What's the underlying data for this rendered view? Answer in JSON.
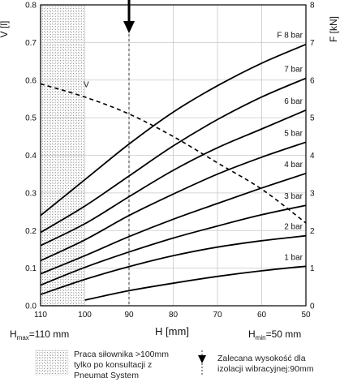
{
  "chart_data": {
    "type": "line",
    "x_axis": {
      "label": "H [mm]",
      "reversed": true,
      "range": [
        110,
        50
      ],
      "ticks": [
        "110",
        "100",
        "90",
        "80",
        "70",
        "60",
        "50"
      ],
      "grid": true
    },
    "y_left": {
      "label": "V [l]",
      "range": [
        0,
        0.8
      ],
      "ticks": [
        "0.0",
        "0.1",
        "0.2",
        "0.3",
        "0.4",
        "0.5",
        "0.6",
        "0.7",
        "0.8"
      ]
    },
    "y_right": {
      "label": "F [kN]",
      "range": [
        0,
        8
      ],
      "ticks": [
        "0",
        "1",
        "2",
        "3",
        "4",
        "5",
        "6",
        "7",
        "8"
      ]
    },
    "hmax_label": {
      "sym": "H",
      "sub": "max",
      "rest": "=110 mm"
    },
    "hmin_label": {
      "sym": "H",
      "sub": "min",
      "rest": "=50 mm"
    },
    "hatched_region": {
      "from": 110,
      "to": 100
    },
    "recommended_height": 90,
    "grid": true,
    "series": [
      {
        "name": "1 bar",
        "axis": "right",
        "x": [
          100,
          90,
          80,
          70,
          60,
          50
        ],
        "values": [
          0.15,
          0.4,
          0.6,
          0.78,
          0.93,
          1.05
        ]
      },
      {
        "name": "2 bar",
        "axis": "right",
        "x": [
          110,
          100,
          90,
          80,
          70,
          60,
          50
        ],
        "values": [
          0.3,
          0.7,
          1.04,
          1.33,
          1.56,
          1.73,
          1.86
        ]
      },
      {
        "name": "3 bar",
        "axis": "right",
        "x": [
          110,
          100,
          90,
          80,
          70,
          60,
          50
        ],
        "values": [
          0.55,
          1.02,
          1.43,
          1.8,
          2.12,
          2.42,
          2.67
        ]
      },
      {
        "name": "4 bar",
        "axis": "right",
        "x": [
          110,
          100,
          90,
          80,
          70,
          60,
          50
        ],
        "values": [
          0.85,
          1.33,
          1.84,
          2.3,
          2.72,
          3.13,
          3.52
        ]
      },
      {
        "name": "5 bar",
        "axis": "right",
        "x": [
          110,
          100,
          90,
          80,
          70,
          60,
          50
        ],
        "values": [
          1.2,
          1.75,
          2.4,
          2.97,
          3.5,
          3.95,
          4.35
        ]
      },
      {
        "name": "6 bar",
        "axis": "right",
        "x": [
          110,
          100,
          90,
          80,
          70,
          60,
          50
        ],
        "values": [
          1.6,
          2.18,
          2.9,
          3.6,
          4.2,
          4.7,
          5.2
        ]
      },
      {
        "name": "7 bar",
        "axis": "right",
        "x": [
          110,
          100,
          90,
          80,
          70,
          60,
          50
        ],
        "values": [
          1.95,
          2.65,
          3.45,
          4.25,
          4.95,
          5.55,
          6.05
        ]
      },
      {
        "name": "F 8 bar",
        "axis": "right",
        "x": [
          110,
          100,
          90,
          80,
          70,
          60,
          50
        ],
        "values": [
          2.4,
          3.35,
          4.3,
          5.15,
          5.85,
          6.45,
          6.95
        ]
      },
      {
        "name": "V",
        "axis": "left",
        "dashed": true,
        "x": [
          110,
          100,
          90,
          80,
          70,
          60,
          50
        ],
        "values": [
          0.59,
          0.555,
          0.51,
          0.45,
          0.38,
          0.31,
          0.22
        ]
      }
    ]
  },
  "legend": {
    "hatched_text_1": "Praca siłownika >100mm",
    "hatched_text_2": "tylko po konsultacji z",
    "hatched_text_3": "Pneumat System",
    "arrow_text_1": "Zalecana wysokość dla",
    "arrow_text_2": "izolacji wibracyjnej:90mm"
  }
}
